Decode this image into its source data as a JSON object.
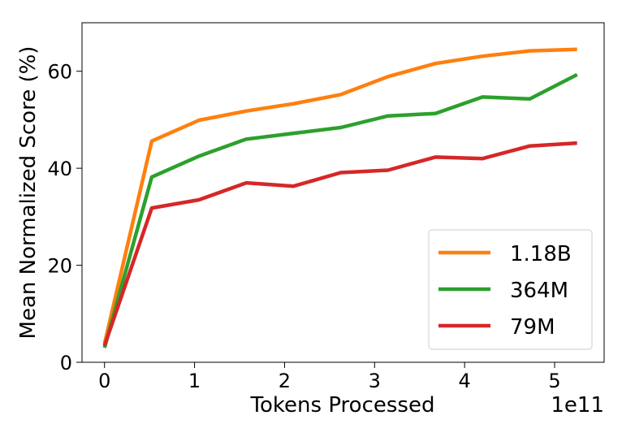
{
  "chart_data": {
    "type": "line",
    "title": "",
    "xlabel": "Tokens Processed",
    "ylabel": "Mean Normalized Score (%)",
    "x_offset_label": "1e11",
    "xlim": [
      -0.25,
      5.55
    ],
    "ylim": [
      0,
      70
    ],
    "xticks": [
      0,
      1,
      2,
      3,
      4,
      5
    ],
    "xtick_labels": [
      "0",
      "1",
      "2",
      "3",
      "4",
      "5"
    ],
    "yticks": [
      0,
      20,
      40,
      60
    ],
    "ytick_labels": [
      "0",
      "20",
      "40",
      "60"
    ],
    "grid": false,
    "legend_position": "bottom-right",
    "x": [
      0,
      0.525,
      1.05,
      1.575,
      2.1,
      2.625,
      3.15,
      3.675,
      4.2,
      4.725,
      5.25
    ],
    "series": [
      {
        "name": "1.18B",
        "color": "#ff7f0e",
        "values": [
          3.8,
          45.6,
          49.9,
          51.8,
          53.3,
          55.2,
          58.9,
          61.6,
          63.1,
          64.2,
          64.5
        ]
      },
      {
        "name": "364M",
        "color": "#2ca02c",
        "values": [
          3.0,
          38.2,
          42.5,
          46.0,
          47.2,
          48.4,
          50.8,
          51.3,
          54.7,
          54.3,
          59.3
        ]
      },
      {
        "name": "79M",
        "color": "#d62728",
        "values": [
          3.4,
          31.8,
          33.5,
          37.0,
          36.3,
          39.1,
          39.6,
          42.3,
          42.0,
          44.6,
          45.2
        ]
      }
    ]
  }
}
